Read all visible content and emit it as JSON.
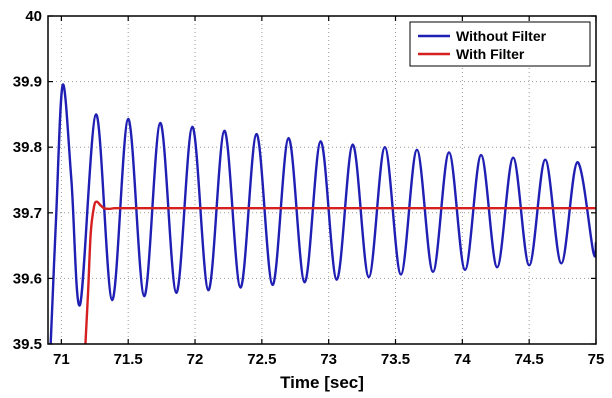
{
  "chart_data": {
    "type": "line",
    "title": "",
    "xlabel": "Time [sec]",
    "ylabel": "",
    "xlim": [
      70.9,
      75.0
    ],
    "ylim": [
      39.5,
      40.0
    ],
    "xticks": [
      71,
      71.5,
      72,
      72.5,
      73,
      73.5,
      74,
      74.5,
      75
    ],
    "xtick_labels": [
      "71",
      "71.5",
      "72",
      "72.5",
      "73",
      "73.5",
      "74",
      "74.5",
      "75"
    ],
    "yticks": [
      39.5,
      39.6,
      39.7,
      39.8,
      39.9,
      40.0
    ],
    "ytick_labels": [
      "39.5",
      "39.6",
      "39.7",
      "39.8",
      "39.9",
      "40"
    ],
    "grid": true,
    "legend_position": "top-right",
    "series": [
      {
        "name": "Without Filter",
        "color": "#1f1fb4",
        "x": [
          70.92,
          70.96,
          71.01,
          71.075,
          71.14,
          71.26,
          71.38,
          71.5,
          71.62,
          71.74,
          71.86,
          71.98,
          72.1,
          72.22,
          72.34,
          72.46,
          72.58,
          72.7,
          72.82,
          72.94,
          73.06,
          73.18,
          73.3,
          73.42,
          73.54,
          73.66,
          73.78,
          73.9,
          74.02,
          74.14,
          74.26,
          74.38,
          74.5,
          74.62,
          74.74,
          74.86,
          74.98,
          75.0
        ],
        "y": [
          39.5,
          39.69,
          39.895,
          39.75,
          39.56,
          39.85,
          39.567,
          39.843,
          39.573,
          39.837,
          39.578,
          39.831,
          39.582,
          39.825,
          39.586,
          39.82,
          39.59,
          39.814,
          39.594,
          39.809,
          39.598,
          39.804,
          39.602,
          39.8,
          39.606,
          39.796,
          39.61,
          39.792,
          39.613,
          39.788,
          39.617,
          39.784,
          39.62,
          39.781,
          39.623,
          39.777,
          39.64,
          39.655
        ]
      },
      {
        "name": "With Filter",
        "color": "#d62020",
        "x": [
          71.18,
          71.2,
          71.22,
          71.245,
          71.265,
          71.29,
          71.32,
          71.36,
          71.4,
          71.5,
          72.0,
          73.0,
          74.0,
          75.0
        ],
        "y": [
          39.5,
          39.58,
          39.67,
          39.71,
          39.717,
          39.712,
          39.707,
          39.706,
          39.707,
          39.707,
          39.707,
          39.707,
          39.707,
          39.707
        ]
      }
    ]
  }
}
